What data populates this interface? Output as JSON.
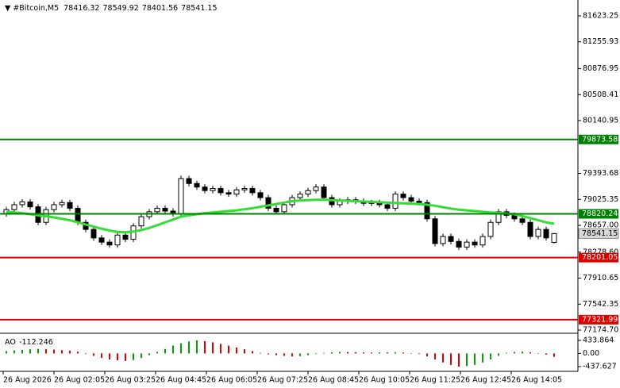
{
  "chart_data": {
    "type": "candlestick",
    "symbol": "#Bitcoin,M5",
    "open": [
      78820,
      78880,
      78950,
      78990,
      78920,
      78700,
      78880,
      78950,
      78980,
      78900,
      78700,
      78600,
      78480,
      78420,
      78380,
      78520,
      78460,
      78650,
      78780,
      78850,
      78900,
      78860,
      78820,
      79320,
      79250,
      79200,
      79150,
      79180,
      79120,
      79100,
      79160,
      79180,
      79120,
      79050,
      78900,
      78850,
      78950,
      79050,
      79100,
      79150,
      79200,
      79050,
      78950,
      79000,
      79020,
      79000,
      78970,
      78980,
      78950,
      78900,
      79100,
      79050,
      79000,
      78980,
      78750,
      78400,
      78500,
      78430,
      78350,
      78420,
      78380,
      78500,
      78700,
      78850,
      78800,
      78750,
      78700,
      78500,
      78600,
      78416.32
    ],
    "high": [
      78920,
      78990,
      79030,
      79030,
      78960,
      78920,
      78990,
      79020,
      79020,
      78940,
      78740,
      78640,
      78520,
      78460,
      78560,
      78560,
      78690,
      78820,
      78890,
      78940,
      78940,
      78900,
      79360,
      79360,
      79290,
      79240,
      79220,
      79220,
      79160,
      79200,
      79220,
      79220,
      79160,
      79090,
      78940,
      78990,
      79090,
      79140,
      79190,
      79240,
      79240,
      79090,
      79040,
      79060,
      79060,
      79040,
      79020,
      79020,
      78990,
      79140,
      79140,
      79090,
      79040,
      79020,
      78790,
      78540,
      78540,
      78470,
      78460,
      78460,
      78540,
      78740,
      78890,
      78890,
      78840,
      78790,
      78740,
      78640,
      78640,
      78549.92
    ],
    "low": [
      78780,
      78840,
      78910,
      78880,
      78660,
      78660,
      78840,
      78910,
      78860,
      78660,
      78560,
      78440,
      78380,
      78340,
      78340,
      78420,
      78420,
      78610,
      78740,
      78810,
      78820,
      78780,
      78780,
      79210,
      79160,
      79110,
      79110,
      79080,
      79060,
      79060,
      79120,
      79080,
      79010,
      78860,
      78810,
      78810,
      78910,
      79010,
      79060,
      79110,
      79010,
      78910,
      78910,
      78960,
      78960,
      78930,
      78930,
      78910,
      78860,
      78860,
      79010,
      78960,
      78940,
      78710,
      78360,
      78360,
      78390,
      78310,
      78310,
      78340,
      78340,
      78460,
      78660,
      78760,
      78710,
      78660,
      78460,
      78460,
      78440,
      78401.56
    ],
    "close": [
      78880,
      78950,
      78990,
      78920,
      78700,
      78880,
      78950,
      78980,
      78900,
      78700,
      78600,
      78480,
      78420,
      78380,
      78520,
      78460,
      78650,
      78780,
      78850,
      78900,
      78860,
      78820,
      79320,
      79250,
      79200,
      79150,
      79180,
      79120,
      79100,
      79160,
      79180,
      79120,
      79050,
      78900,
      78850,
      78950,
      79050,
      79100,
      79150,
      79200,
      79050,
      78950,
      79000,
      79020,
      79000,
      78970,
      78980,
      78950,
      78900,
      79100,
      79050,
      79000,
      78980,
      78750,
      78400,
      78500,
      78430,
      78350,
      78420,
      78380,
      78500,
      78700,
      78850,
      78800,
      78750,
      78700,
      78500,
      78600,
      78480,
      78541.15
    ],
    "moving_average": {
      "color": "#33dd33",
      "values": [
        78850,
        78840,
        78830,
        78815,
        78800,
        78785,
        78770,
        78750,
        78730,
        78700,
        78670,
        78640,
        78610,
        78585,
        78565,
        78560,
        78570,
        78590,
        78620,
        78660,
        78700,
        78740,
        78780,
        78800,
        78815,
        78830,
        78840,
        78850,
        78860,
        78870,
        78885,
        78900,
        78920,
        78940,
        78960,
        78980,
        79000,
        79010,
        79015,
        79020,
        79020,
        79015,
        79010,
        79005,
        79000,
        78995,
        78990,
        78985,
        78980,
        78975,
        78970,
        78965,
        78960,
        78950,
        78935,
        78915,
        78895,
        78880,
        78870,
        78860,
        78850,
        78840,
        78835,
        78825,
        78815,
        78790,
        78760,
        78730,
        78700,
        78680
      ]
    },
    "ylim": [
      77130,
      81848
    ],
    "yticks": [
      81623.25,
      81255.93,
      80876.95,
      80508.41,
      80140.95,
      79393.68,
      79025.35,
      {
        "value": 78657,
        "label": "78657.00"
      },
      {
        "value": 78278.6,
        "label": "78278.60"
      },
      77910.65,
      77542.35,
      {
        "value": 77174.7,
        "label": "77174.70"
      }
    ],
    "levels": [
      {
        "value": 79873.58,
        "color": "#008000"
      },
      {
        "value": 78820.24,
        "color": "#008000"
      },
      {
        "value": 78201.05,
        "color": "#e00000"
      },
      {
        "value": 77321.99,
        "color": "#e00000"
      }
    ],
    "time_labels": [
      "26 Aug 2026",
      "26 Aug 02:05",
      "26 Aug 03:25",
      "26 Aug 04:45",
      "26 Aug 06:05",
      "26 Aug 07:25",
      "26 Aug 08:45",
      "26 Aug 10:05",
      "26 Aug 11:25",
      "26 Aug 12:45",
      "26 Aug 14:05"
    ],
    "oscillator": {
      "name": "AO",
      "up_color": "#00a000",
      "down_color": "#e00000",
      "values": [
        80,
        100,
        120,
        140,
        150,
        140,
        130,
        110,
        90,
        60,
        -20,
        -80,
        -150,
        -200,
        -230,
        -250,
        -220,
        -150,
        -60,
        50,
        150,
        260,
        340,
        400,
        433.864,
        410,
        370,
        320,
        260,
        200,
        140,
        80,
        20,
        -30,
        -60,
        -80,
        -100,
        -90,
        -60,
        -20,
        20,
        40,
        50,
        45,
        40,
        35,
        30,
        35,
        40,
        45,
        30,
        10,
        -20,
        -100,
        -200,
        -300,
        -380,
        -437.627,
        -420,
        -380,
        -300,
        -200,
        -80,
        20,
        50,
        60,
        40,
        10,
        -40,
        -112.246
      ],
      "ylim": [
        -596,
        566
      ],
      "yticks": [
        433.864,
        {
          "value": 0,
          "label": "0.00"
        },
        -437.627
      ]
    }
  }
}
